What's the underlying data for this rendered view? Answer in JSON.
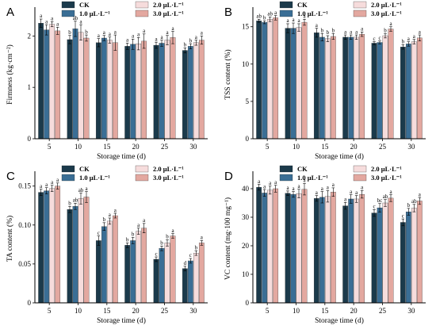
{
  "figure": {
    "legend_labels": [
      "CK",
      "1.0 μL·L⁻¹",
      "2.0 μL·L⁻¹",
      "3.0 μL·L⁻¹"
    ],
    "series_colors": [
      "#1b3a4b",
      "#3a6e95",
      "#f6dcdc",
      "#e3a8a0"
    ]
  },
  "chart_data": [
    {
      "type": "bar",
      "panel_label": "A",
      "title": "",
      "xlabel": "Storage time (d)",
      "ylabel": "Firmness (kg·cm⁻²)",
      "categories": [
        "5",
        "10",
        "15",
        "20",
        "25",
        "30"
      ],
      "ylim": [
        0,
        2.5
      ],
      "yticks": [
        0,
        1,
        2
      ],
      "ytick_labels": [
        "0",
        "1",
        "2"
      ],
      "series": [
        {
          "name": "CK",
          "values": [
            2.25,
            1.93,
            1.87,
            1.8,
            1.82,
            1.72
          ],
          "errors": [
            0.08,
            0.08,
            0.08,
            0.06,
            0.06,
            0.05
          ],
          "sig": [
            "a",
            "b",
            "a",
            "a",
            "a",
            "b"
          ]
        },
        {
          "name": "1.0 μL·L⁻¹",
          "values": [
            2.12,
            2.14,
            1.96,
            1.84,
            1.86,
            1.8
          ],
          "errors": [
            0.1,
            0.15,
            0.05,
            0.1,
            0.06,
            0.05
          ],
          "sig": [
            "a",
            "ab",
            "a",
            "a",
            "a",
            "b"
          ]
        },
        {
          "name": "2.0 μL·L⁻¹",
          "values": [
            2.23,
            2.07,
            1.92,
            1.85,
            1.92,
            1.87
          ],
          "errors": [
            0.05,
            0.15,
            0.06,
            0.12,
            0.09,
            0.05
          ],
          "sig": [
            "a",
            "a",
            "a",
            "a",
            "a",
            "a"
          ]
        },
        {
          "name": "3.0 μL·L⁻¹",
          "values": [
            2.1,
            1.96,
            1.87,
            1.9,
            1.97,
            1.92
          ],
          "errors": [
            0.07,
            0.06,
            0.15,
            0.14,
            0.12,
            0.08
          ],
          "sig": [
            "a",
            "b",
            "a",
            "a",
            "a",
            "a"
          ]
        }
      ]
    },
    {
      "type": "bar",
      "panel_label": "B",
      "title": "",
      "xlabel": "Storage time (d)",
      "ylabel": "TSS content (%)",
      "categories": [
        "5",
        "10",
        "15",
        "20",
        "25",
        "30"
      ],
      "ylim": [
        0,
        17.2
      ],
      "yticks": [
        0,
        5,
        10,
        15
      ],
      "ytick_labels": [
        "0",
        "5",
        "10",
        "15"
      ],
      "series": [
        {
          "name": "CK",
          "values": [
            15.8,
            14.8,
            14.2,
            13.6,
            12.8,
            12.3
          ],
          "errors": [
            0.2,
            0.6,
            0.6,
            0.3,
            0.2,
            0.3
          ],
          "sig": [
            "ab",
            "a",
            "a",
            "a",
            "c",
            "b"
          ]
        },
        {
          "name": "1.0 μL·L⁻¹",
          "values": [
            15.6,
            14.8,
            13.6,
            13.6,
            12.9,
            12.7
          ],
          "errors": [
            0.2,
            0.7,
            0.5,
            0.3,
            0.2,
            0.3
          ],
          "sig": [
            "b",
            "a",
            "b",
            "a",
            "c",
            "a"
          ]
        },
        {
          "name": "2.0 μL·L⁻¹",
          "values": [
            16.0,
            14.9,
            13.4,
            13.6,
            13.8,
            13.0
          ],
          "errors": [
            0.3,
            0.5,
            0.4,
            0.3,
            0.3,
            0.3
          ],
          "sig": [
            "ab",
            "a",
            "b",
            "a",
            "b",
            "a"
          ]
        },
        {
          "name": "3.0 μL·L⁻¹",
          "values": [
            16.2,
            15.6,
            13.7,
            14.0,
            14.7,
            13.5
          ],
          "errors": [
            0.3,
            0.4,
            0.4,
            0.3,
            0.3,
            0.4
          ],
          "sig": [
            "a",
            "a",
            "b",
            "a",
            "a",
            "a"
          ]
        }
      ]
    },
    {
      "type": "bar",
      "panel_label": "C",
      "title": "",
      "xlabel": "Storage time (d)",
      "ylabel": "TA content (%)",
      "categories": [
        "5",
        "10",
        "15",
        "20",
        "25",
        "30"
      ],
      "ylim": [
        0,
        0.165
      ],
      "yticks": [
        0,
        0.05,
        0.1,
        0.15
      ],
      "ytick_labels": [
        "0",
        "0.05",
        "0.10",
        "0.15"
      ],
      "series": [
        {
          "name": "CK",
          "values": [
            0.142,
            0.12,
            0.08,
            0.074,
            0.056,
            0.044
          ],
          "errors": [
            0.004,
            0.004,
            0.006,
            0.003,
            0.003,
            0.003
          ],
          "sig": [
            "a",
            "b",
            "c",
            "b",
            "c",
            "d"
          ]
        },
        {
          "name": "1.0 μL·L⁻¹",
          "values": [
            0.144,
            0.124,
            0.098,
            0.08,
            0.07,
            0.054
          ],
          "errors": [
            0.004,
            0.004,
            0.005,
            0.004,
            0.003,
            0.003
          ],
          "sig": [
            "a",
            "ab",
            "b",
            "b",
            "b",
            "c"
          ]
        },
        {
          "name": "2.0 μL·L⁻¹",
          "values": [
            0.147,
            0.134,
            0.105,
            0.092,
            0.077,
            0.064
          ],
          "errors": [
            0.004,
            0.007,
            0.004,
            0.004,
            0.004,
            0.003
          ],
          "sig": [
            "a",
            "ab",
            "a",
            "a",
            "b",
            "b"
          ]
        },
        {
          "name": "3.0 μL·L⁻¹",
          "values": [
            0.15,
            0.136,
            0.112,
            0.096,
            0.086,
            0.077
          ],
          "errors": [
            0.004,
            0.007,
            0.003,
            0.006,
            0.003,
            0.003
          ],
          "sig": [
            "a",
            "a",
            "a",
            "a",
            "a",
            "a"
          ]
        }
      ]
    },
    {
      "type": "bar",
      "panel_label": "D",
      "title": "",
      "xlabel": "Storage time (d)",
      "ylabel": "VC content (mg·100 mg⁻¹)",
      "categories": [
        "5",
        "10",
        "15",
        "20",
        "25",
        "30"
      ],
      "ylim": [
        0,
        45
      ],
      "yticks": [
        0,
        10,
        20,
        30,
        40
      ],
      "ytick_labels": [
        "0",
        "10",
        "20",
        "30",
        "40"
      ],
      "series": [
        {
          "name": "CK",
          "values": [
            40.5,
            38.4,
            36.6,
            34.0,
            31.5,
            28.2
          ],
          "errors": [
            1.0,
            0.8,
            1.0,
            1.2,
            1.2,
            1.2
          ],
          "sig": [
            "a",
            "a",
            "a",
            "a",
            "c",
            "c"
          ]
        },
        {
          "name": "1.0 μL·L⁻¹",
          "values": [
            38.5,
            38.0,
            37.0,
            36.4,
            33.3,
            31.9
          ],
          "errors": [
            1.2,
            1.0,
            2.0,
            1.5,
            1.5,
            1.2
          ],
          "sig": [
            "a",
            "a",
            "a",
            "a",
            "bc",
            "b"
          ]
        },
        {
          "name": "2.0 μL·L⁻¹",
          "values": [
            39.5,
            38.3,
            37.3,
            36.4,
            35.0,
            33.2
          ],
          "errors": [
            1.4,
            1.5,
            2.0,
            1.2,
            1.2,
            1.3
          ],
          "sig": [
            "a",
            "a",
            "a",
            "a",
            "ab",
            "ab"
          ]
        },
        {
          "name": "3.0 μL·L⁻¹",
          "values": [
            40.0,
            39.8,
            38.8,
            38.0,
            36.7,
            35.7
          ],
          "errors": [
            1.2,
            2.0,
            1.5,
            1.3,
            1.2,
            1.2
          ],
          "sig": [
            "a",
            "a",
            "a",
            "a",
            "a",
            "a"
          ]
        }
      ]
    }
  ]
}
